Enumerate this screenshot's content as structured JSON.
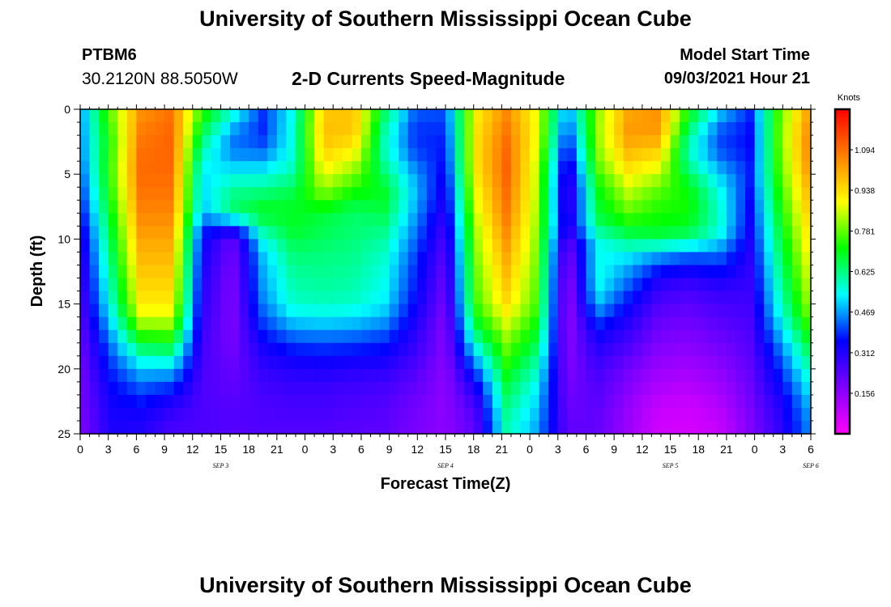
{
  "header": {
    "title": "University of Southern Mississippi Ocean Cube",
    "station_id": "PTBM6",
    "station_coords": "30.2120N  88.5050W",
    "subtitle": "2-D Currents Speed-Magnitude",
    "model_start_label": "Model Start Time",
    "model_start_value": "09/03/2021 Hour 21"
  },
  "footer": {
    "title": "University of Southern Mississippi Ocean Cube"
  },
  "chart_data": {
    "type": "heatmap",
    "title": "2-D Currents Speed-Magnitude",
    "xlabel": "Forecast Time(Z)",
    "ylabel": "Depth (ft)",
    "x_tick_labels": [
      "0",
      "3",
      "6",
      "9",
      "12",
      "15",
      "18",
      "21",
      "0",
      "3",
      "6",
      "9",
      "12",
      "15",
      "18",
      "21",
      "0",
      "3",
      "6",
      "9",
      "12",
      "15",
      "18",
      "21",
      "0",
      "3",
      "6"
    ],
    "date_labels": [
      {
        "text": "SEP 3",
        "hour": 15
      },
      {
        "text": "SEP 4",
        "hour": 39
      },
      {
        "text": "SEP 5",
        "hour": 63
      },
      {
        "text": "SEP 6",
        "hour": 78
      }
    ],
    "xlim_hours": [
      0,
      78
    ],
    "y_ticks": [
      0,
      5,
      10,
      15,
      20,
      25
    ],
    "ylim": [
      0,
      25
    ],
    "y_inverted": true,
    "colorbar": {
      "title": "Knots",
      "tick_labels": [
        "1.094",
        "0.938",
        "0.781",
        "0.625",
        "0.469",
        "0.312",
        "0.156"
      ],
      "tick_values": [
        1.094,
        0.938,
        0.781,
        0.625,
        0.469,
        0.312,
        0.156
      ],
      "range": [
        0,
        1.25
      ],
      "colors": [
        "#ff00ff",
        "#8000ff",
        "#0000ff",
        "#00ffff",
        "#00ff00",
        "#ffff00",
        "#ff8000",
        "#ff0000"
      ]
    },
    "grid": {
      "time_step_hours": 1,
      "depth_step_ft": 1
    },
    "speed_matrix_knots": [
      [
        0.45,
        0.78,
        1.04,
        1.09,
        0.75,
        0.58,
        0.4,
        0.54,
        0.96,
        0.97,
        0.66,
        0.43,
        0.41,
        0.91,
        1.05,
        0.88,
        0.45,
        0.81,
        1.01,
        1.04,
        0.72,
        0.52,
        0.39,
        0.78,
        1.04
      ],
      [
        0.45,
        0.77,
        1.06,
        1.1,
        0.71,
        0.51,
        0.38,
        0.56,
        0.98,
        0.98,
        0.62,
        0.4,
        0.4,
        0.92,
        1.07,
        0.89,
        0.42,
        0.82,
        1.03,
        1.05,
        0.67,
        0.45,
        0.37,
        0.79,
        1.06
      ],
      [
        0.44,
        0.74,
        1.08,
        1.11,
        0.65,
        0.45,
        0.39,
        0.56,
        0.98,
        0.96,
        0.59,
        0.39,
        0.38,
        0.93,
        1.09,
        0.89,
        0.38,
        0.82,
        1.03,
        1.02,
        0.61,
        0.41,
        0.36,
        0.8,
        1.08
      ],
      [
        0.44,
        0.74,
        1.09,
        1.11,
        0.6,
        0.44,
        0.42,
        0.56,
        0.96,
        0.92,
        0.58,
        0.4,
        0.37,
        0.93,
        1.1,
        0.88,
        0.34,
        0.81,
        1.0,
        0.97,
        0.58,
        0.41,
        0.36,
        0.79,
        1.08
      ],
      [
        0.43,
        0.75,
        1.1,
        1.11,
        0.56,
        0.48,
        0.48,
        0.57,
        0.93,
        0.86,
        0.6,
        0.43,
        0.36,
        0.93,
        1.11,
        0.86,
        0.3,
        0.79,
        0.96,
        0.91,
        0.59,
        0.45,
        0.37,
        0.78,
        1.07
      ],
      [
        0.41,
        0.75,
        1.1,
        1.1,
        0.52,
        0.54,
        0.54,
        0.6,
        0.88,
        0.8,
        0.64,
        0.47,
        0.34,
        0.92,
        1.11,
        0.85,
        0.27,
        0.75,
        0.91,
        0.85,
        0.65,
        0.5,
        0.38,
        0.77,
        1.05
      ],
      [
        0.39,
        0.74,
        1.09,
        1.09,
        0.51,
        0.6,
        0.61,
        0.65,
        0.83,
        0.74,
        0.68,
        0.49,
        0.32,
        0.9,
        1.1,
        0.85,
        0.24,
        0.71,
        0.86,
        0.79,
        0.7,
        0.54,
        0.37,
        0.75,
        1.02
      ],
      [
        0.37,
        0.72,
        1.08,
        1.08,
        0.5,
        0.63,
        0.66,
        0.68,
        0.76,
        0.69,
        0.69,
        0.49,
        0.31,
        0.88,
        1.09,
        0.84,
        0.24,
        0.69,
        0.82,
        0.75,
        0.72,
        0.56,
        0.36,
        0.73,
        1.0
      ],
      [
        0.35,
        0.7,
        1.06,
        1.06,
        0.48,
        0.63,
        0.7,
        0.69,
        0.68,
        0.64,
        0.66,
        0.47,
        0.29,
        0.86,
        1.08,
        0.83,
        0.26,
        0.67,
        0.77,
        0.73,
        0.72,
        0.57,
        0.35,
        0.71,
        0.98
      ],
      [
        0.32,
        0.68,
        1.04,
        1.04,
        0.4,
        0.38,
        0.62,
        0.69,
        0.66,
        0.64,
        0.63,
        0.45,
        0.27,
        0.84,
        1.06,
        0.82,
        0.28,
        0.64,
        0.71,
        0.71,
        0.68,
        0.57,
        0.34,
        0.69,
        0.96
      ],
      [
        0.3,
        0.66,
        1.02,
        1.02,
        0.36,
        0.22,
        0.55,
        0.67,
        0.65,
        0.63,
        0.6,
        0.43,
        0.25,
        0.82,
        1.04,
        0.81,
        0.22,
        0.55,
        0.63,
        0.65,
        0.63,
        0.53,
        0.33,
        0.67,
        0.94
      ],
      [
        0.28,
        0.64,
        1.0,
        1.0,
        0.34,
        0.2,
        0.5,
        0.64,
        0.63,
        0.62,
        0.58,
        0.41,
        0.23,
        0.81,
        1.02,
        0.8,
        0.18,
        0.54,
        0.55,
        0.5,
        0.45,
        0.44,
        0.31,
        0.65,
        0.92
      ],
      [
        0.27,
        0.62,
        0.98,
        0.98,
        0.33,
        0.19,
        0.48,
        0.62,
        0.62,
        0.61,
        0.56,
        0.39,
        0.22,
        0.79,
        1.0,
        0.79,
        0.16,
        0.55,
        0.48,
        0.4,
        0.37,
        0.39,
        0.3,
        0.63,
        0.9
      ],
      [
        0.26,
        0.6,
        0.96,
        0.96,
        0.32,
        0.18,
        0.47,
        0.6,
        0.61,
        0.6,
        0.55,
        0.38,
        0.21,
        0.78,
        0.98,
        0.78,
        0.15,
        0.55,
        0.45,
        0.33,
        0.3,
        0.33,
        0.29,
        0.61,
        0.88
      ],
      [
        0.25,
        0.58,
        0.94,
        0.94,
        0.31,
        0.18,
        0.46,
        0.59,
        0.6,
        0.59,
        0.54,
        0.37,
        0.2,
        0.77,
        0.96,
        0.77,
        0.14,
        0.53,
        0.4,
        0.28,
        0.26,
        0.29,
        0.28,
        0.59,
        0.86
      ],
      [
        0.24,
        0.56,
        0.92,
        0.92,
        0.3,
        0.18,
        0.44,
        0.57,
        0.58,
        0.57,
        0.52,
        0.35,
        0.19,
        0.75,
        0.94,
        0.76,
        0.14,
        0.49,
        0.36,
        0.25,
        0.23,
        0.26,
        0.27,
        0.57,
        0.84
      ],
      [
        0.23,
        0.52,
        0.86,
        0.86,
        0.29,
        0.18,
        0.41,
        0.52,
        0.53,
        0.52,
        0.48,
        0.33,
        0.18,
        0.71,
        0.89,
        0.73,
        0.14,
        0.42,
        0.32,
        0.22,
        0.21,
        0.24,
        0.26,
        0.54,
        0.8
      ],
      [
        0.22,
        0.48,
        0.78,
        0.79,
        0.28,
        0.18,
        0.38,
        0.46,
        0.47,
        0.46,
        0.43,
        0.31,
        0.17,
        0.65,
        0.84,
        0.7,
        0.15,
        0.36,
        0.29,
        0.2,
        0.19,
        0.22,
        0.25,
        0.5,
        0.75
      ],
      [
        0.21,
        0.44,
        0.68,
        0.7,
        0.27,
        0.19,
        0.34,
        0.4,
        0.41,
        0.4,
        0.38,
        0.29,
        0.17,
        0.58,
        0.8,
        0.66,
        0.16,
        0.32,
        0.26,
        0.18,
        0.17,
        0.2,
        0.24,
        0.46,
        0.7
      ],
      [
        0.2,
        0.41,
        0.58,
        0.6,
        0.26,
        0.2,
        0.31,
        0.35,
        0.36,
        0.35,
        0.34,
        0.27,
        0.17,
        0.5,
        0.76,
        0.62,
        0.17,
        0.29,
        0.23,
        0.16,
        0.15,
        0.18,
        0.23,
        0.42,
        0.65
      ],
      [
        0.2,
        0.38,
        0.5,
        0.5,
        0.26,
        0.21,
        0.29,
        0.31,
        0.32,
        0.31,
        0.3,
        0.25,
        0.16,
        0.42,
        0.72,
        0.58,
        0.18,
        0.27,
        0.2,
        0.14,
        0.13,
        0.16,
        0.22,
        0.39,
        0.6
      ],
      [
        0.19,
        0.36,
        0.44,
        0.42,
        0.25,
        0.22,
        0.27,
        0.29,
        0.29,
        0.28,
        0.27,
        0.23,
        0.16,
        0.35,
        0.68,
        0.55,
        0.19,
        0.25,
        0.18,
        0.12,
        0.11,
        0.14,
        0.21,
        0.36,
        0.56
      ],
      [
        0.19,
        0.34,
        0.39,
        0.35,
        0.25,
        0.23,
        0.26,
        0.27,
        0.27,
        0.26,
        0.25,
        0.21,
        0.16,
        0.3,
        0.65,
        0.52,
        0.2,
        0.24,
        0.16,
        0.1,
        0.09,
        0.12,
        0.2,
        0.33,
        0.52
      ],
      [
        0.19,
        0.33,
        0.35,
        0.3,
        0.25,
        0.24,
        0.25,
        0.26,
        0.26,
        0.25,
        0.24,
        0.2,
        0.16,
        0.26,
        0.62,
        0.5,
        0.21,
        0.23,
        0.15,
        0.08,
        0.07,
        0.1,
        0.19,
        0.31,
        0.49
      ],
      [
        0.18,
        0.32,
        0.32,
        0.27,
        0.25,
        0.24,
        0.25,
        0.25,
        0.25,
        0.24,
        0.23,
        0.19,
        0.16,
        0.24,
        0.6,
        0.48,
        0.22,
        0.22,
        0.14,
        0.07,
        0.06,
        0.09,
        0.18,
        0.3,
        0.47
      ],
      [
        0.18,
        0.32,
        0.31,
        0.26,
        0.25,
        0.24,
        0.24,
        0.24,
        0.24,
        0.23,
        0.23,
        0.19,
        0.16,
        0.23,
        0.59,
        0.47,
        0.22,
        0.22,
        0.14,
        0.07,
        0.06,
        0.08,
        0.18,
        0.29,
        0.46
      ]
    ]
  }
}
